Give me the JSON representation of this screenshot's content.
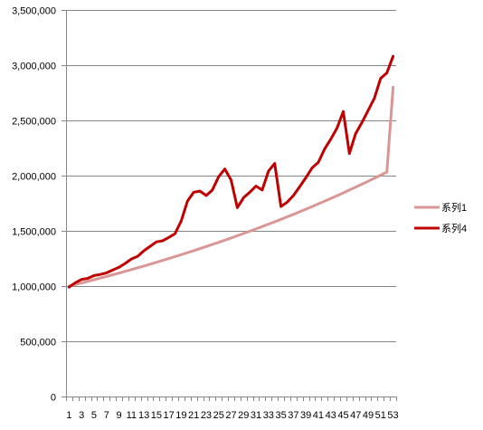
{
  "chart_data": {
    "type": "line",
    "title": "",
    "xlabel": "",
    "ylabel": "",
    "ylim": [
      0,
      3500000
    ],
    "y_ticks": [
      0,
      500000,
      1000000,
      1500000,
      2000000,
      2500000,
      3000000,
      3500000
    ],
    "y_tick_labels": [
      "0",
      "500,000",
      "1,000,000",
      "1,500,000",
      "2,000,000",
      "2,500,000",
      "3,000,000",
      "3,500,000"
    ],
    "x": [
      1,
      2,
      3,
      4,
      5,
      6,
      7,
      8,
      9,
      10,
      11,
      12,
      13,
      14,
      15,
      16,
      17,
      18,
      19,
      20,
      21,
      22,
      23,
      24,
      25,
      26,
      27,
      28,
      29,
      30,
      31,
      32,
      33,
      34,
      35,
      36,
      37,
      38,
      39,
      40,
      41,
      42,
      43,
      44,
      45,
      46,
      47,
      48,
      49,
      50,
      51,
      52,
      53
    ],
    "x_tick_labels": [
      "1",
      "3",
      "5",
      "7",
      "9",
      "11",
      "13",
      "15",
      "17",
      "19",
      "21",
      "23",
      "25",
      "27",
      "29",
      "31",
      "33",
      "35",
      "37",
      "39",
      "41",
      "43",
      "45",
      "47",
      "49",
      "51",
      "53"
    ],
    "grid": "horizontal",
    "legend": "right",
    "series": [
      {
        "name": "系列1",
        "color": "#d99694",
        "values": [
          1000000,
          1014000,
          1028200,
          1042600,
          1057200,
          1072000,
          1087000,
          1102200,
          1117600,
          1133300,
          1149100,
          1165200,
          1181500,
          1198100,
          1214800,
          1231900,
          1249100,
          1266600,
          1284300,
          1302300,
          1320500,
          1339000,
          1357800,
          1376800,
          1396100,
          1415600,
          1435400,
          1455500,
          1475900,
          1496600,
          1517500,
          1538800,
          1560300,
          1582200,
          1604300,
          1626800,
          1649500,
          1672600,
          1696100,
          1719800,
          1743900,
          1768300,
          1793100,
          1818200,
          1843600,
          1869400,
          1895600,
          1922100,
          1949100,
          1976400,
          2004000,
          2032100,
          2800000
        ]
      },
      {
        "name": "系列4",
        "color": "#c00000",
        "values": [
          990000,
          1030000,
          1060000,
          1070000,
          1095000,
          1105000,
          1120000,
          1145000,
          1170000,
          1205000,
          1245000,
          1270000,
          1320000,
          1360000,
          1400000,
          1410000,
          1440000,
          1475000,
          1590000,
          1770000,
          1850000,
          1860000,
          1820000,
          1870000,
          1990000,
          2060000,
          1960000,
          1710000,
          1800000,
          1850000,
          1905000,
          1870000,
          2040000,
          2110000,
          1720000,
          1760000,
          1820000,
          1900000,
          1980000,
          2070000,
          2120000,
          2240000,
          2330000,
          2430000,
          2580000,
          2200000,
          2380000,
          2480000,
          2590000,
          2700000,
          2880000,
          2930000,
          3080000
        ]
      }
    ]
  }
}
